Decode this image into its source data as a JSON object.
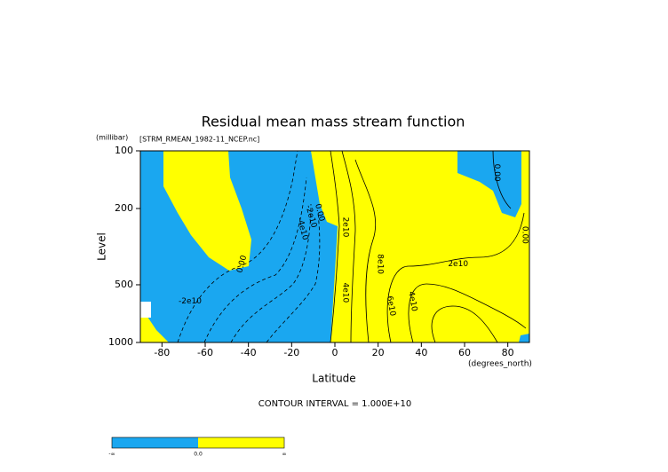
{
  "chart_data": {
    "type": "contour",
    "title": "Residual mean mass stream function",
    "subtitle": "[STRM_RMEAN_1982-11_NCEP.nc]",
    "x_label": "Latitude",
    "x_units": "(degrees_north)",
    "y_label": "Level",
    "y_units": "(millibar)",
    "xlim": [
      -90,
      90
    ],
    "xticks": [
      -80,
      -60,
      -40,
      -20,
      0,
      20,
      40,
      60,
      80
    ],
    "ylim": [
      1000,
      100
    ],
    "yticks": [
      100,
      200,
      500,
      1000
    ],
    "ylog": true,
    "note": "CONTOUR INTERVAL = 1.000E+10",
    "contour_labels": [
      {
        "text": "0.00",
        "x": -43,
        "y": 390
      },
      {
        "text": "-2e10",
        "x": -67,
        "y": 610
      },
      {
        "text": "0.00",
        "x": -7,
        "y": 210
      },
      {
        "text": "-2e10",
        "x": -11,
        "y": 220
      },
      {
        "text": "-4e10",
        "x": -15,
        "y": 255
      },
      {
        "text": "2e10",
        "x": 5,
        "y": 250
      },
      {
        "text": "8e10",
        "x": 21,
        "y": 390
      },
      {
        "text": "4e10",
        "x": 5,
        "y": 550
      },
      {
        "text": "6e10",
        "x": 26,
        "y": 645
      },
      {
        "text": "4e10",
        "x": 36,
        "y": 610
      },
      {
        "text": "2e10",
        "x": 57,
        "y": 390
      },
      {
        "text": "0.00",
        "x": 75,
        "y": 130
      },
      {
        "text": "0.00",
        "x": 88,
        "y": 275
      }
    ],
    "colorbar": {
      "colors": [
        "#1aa7f0",
        "#ffff00"
      ],
      "labels": [
        "-∞",
        "0.0",
        "∞"
      ]
    }
  }
}
